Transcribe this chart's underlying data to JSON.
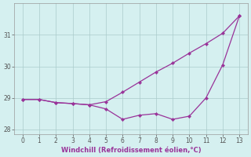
{
  "upper_x": [
    0,
    1,
    2,
    3,
    4,
    5,
    6,
    7,
    8,
    9,
    10,
    11,
    12,
    13
  ],
  "upper_y": [
    28.95,
    28.95,
    28.85,
    28.82,
    28.78,
    28.88,
    29.18,
    29.5,
    29.82,
    30.1,
    30.42,
    30.72,
    31.05,
    31.6
  ],
  "lower_x": [
    0,
    1,
    2,
    3,
    4,
    5,
    6,
    7,
    8,
    9,
    10,
    11,
    12,
    13
  ],
  "lower_y": [
    28.95,
    28.95,
    28.85,
    28.82,
    28.78,
    28.65,
    28.32,
    28.45,
    28.5,
    28.32,
    28.42,
    29.0,
    30.05,
    31.6
  ],
  "line_color": "#993399",
  "background_color": "#d5f0f0",
  "grid_color": "#aacccc",
  "xlabel": "Windchill (Refroidissement éolien,°C)",
  "xlabel_color": "#993399",
  "yticks": [
    28,
    29,
    30,
    31
  ],
  "xticks": [
    0,
    1,
    2,
    3,
    4,
    5,
    6,
    7,
    8,
    9,
    10,
    11,
    12,
    13
  ],
  "xlim": [
    -0.5,
    13.5
  ],
  "ylim": [
    27.85,
    32.0
  ]
}
